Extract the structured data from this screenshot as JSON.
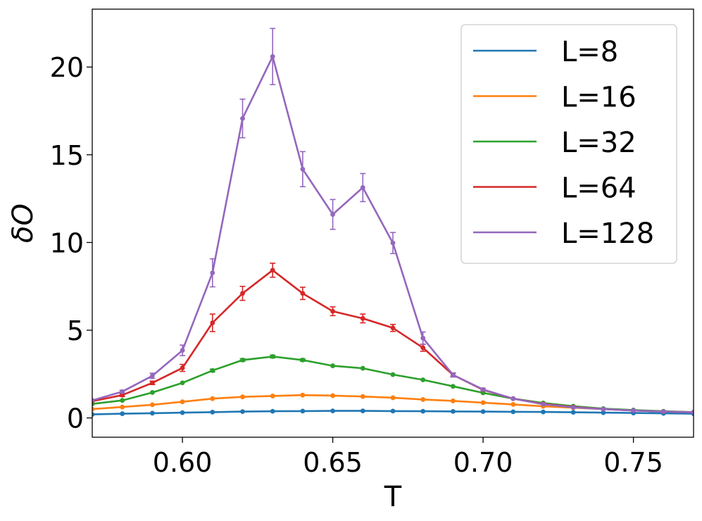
{
  "chart_data": {
    "type": "line",
    "xlabel": "T",
    "ylabel": "δO",
    "xlim": [
      0.57,
      0.77
    ],
    "ylim": [
      -1.1,
      23.3
    ],
    "x_ticks": [
      "0.60",
      "0.65",
      "0.70",
      "0.75"
    ],
    "y_ticks": [
      "0",
      "5",
      "10",
      "15",
      "20"
    ],
    "grid": false,
    "legend_position": "top-right",
    "x": [
      0.57,
      0.58,
      0.59,
      0.6,
      0.61,
      0.62,
      0.63,
      0.64,
      0.65,
      0.66,
      0.67,
      0.68,
      0.69,
      0.7,
      0.71,
      0.72,
      0.73,
      0.74,
      0.75,
      0.76,
      0.77
    ],
    "series": [
      {
        "name": "L=8",
        "color": "#1f77b4",
        "values": [
          0.2,
          0.24,
          0.27,
          0.3,
          0.33,
          0.36,
          0.38,
          0.39,
          0.4,
          0.4,
          0.39,
          0.38,
          0.37,
          0.36,
          0.35,
          0.34,
          0.32,
          0.3,
          0.28,
          0.26,
          0.24
        ],
        "errors": [
          0.01,
          0.01,
          0.01,
          0.01,
          0.01,
          0.01,
          0.01,
          0.01,
          0.01,
          0.01,
          0.01,
          0.01,
          0.01,
          0.01,
          0.01,
          0.01,
          0.01,
          0.01,
          0.01,
          0.01,
          0.01
        ]
      },
      {
        "name": "L=16",
        "color": "#ff7f0e",
        "values": [
          0.5,
          0.62,
          0.75,
          0.92,
          1.1,
          1.2,
          1.25,
          1.3,
          1.27,
          1.22,
          1.15,
          1.05,
          0.97,
          0.87,
          0.77,
          0.66,
          0.58,
          0.5,
          0.43,
          0.37,
          0.33
        ],
        "errors": [
          0.02,
          0.02,
          0.02,
          0.03,
          0.03,
          0.03,
          0.03,
          0.03,
          0.03,
          0.03,
          0.03,
          0.03,
          0.02,
          0.02,
          0.02,
          0.02,
          0.02,
          0.02,
          0.02,
          0.02,
          0.02
        ]
      },
      {
        "name": "L=32",
        "color": "#2ca02c",
        "values": [
          0.8,
          1.0,
          1.45,
          2.0,
          2.7,
          3.3,
          3.5,
          3.3,
          2.97,
          2.83,
          2.47,
          2.17,
          1.8,
          1.43,
          1.1,
          0.85,
          0.67,
          0.53,
          0.45,
          0.38,
          0.33
        ],
        "errors": [
          0.03,
          0.04,
          0.05,
          0.06,
          0.08,
          0.08,
          0.08,
          0.07,
          0.06,
          0.06,
          0.05,
          0.05,
          0.04,
          0.04,
          0.03,
          0.03,
          0.03,
          0.02,
          0.02,
          0.02,
          0.02
        ]
      },
      {
        "name": "L=64",
        "color": "#d62728",
        "values": [
          0.95,
          1.3,
          2.0,
          2.85,
          5.42,
          7.1,
          8.42,
          7.1,
          6.08,
          5.67,
          5.13,
          4.0,
          2.45,
          1.6,
          1.1,
          0.8,
          0.62,
          0.5,
          0.42,
          0.36,
          0.32
        ],
        "errors": [
          0.05,
          0.08,
          0.1,
          0.2,
          0.5,
          0.4,
          0.4,
          0.35,
          0.25,
          0.25,
          0.2,
          0.2,
          0.1,
          0.06,
          0.04,
          0.03,
          0.03,
          0.02,
          0.02,
          0.02,
          0.02
        ]
      },
      {
        "name": "L=128",
        "color": "#9467bd",
        "values": [
          1.0,
          1.5,
          2.4,
          3.85,
          8.27,
          17.07,
          20.6,
          14.18,
          11.6,
          13.13,
          9.97,
          4.55,
          2.45,
          1.62,
          1.1,
          0.78,
          0.6,
          0.5,
          0.42,
          0.36,
          0.32
        ],
        "errors": [
          0.05,
          0.08,
          0.15,
          0.3,
          0.8,
          1.1,
          1.6,
          1.0,
          0.85,
          0.8,
          0.6,
          0.35,
          0.12,
          0.07,
          0.05,
          0.04,
          0.03,
          0.03,
          0.02,
          0.02,
          0.02
        ]
      }
    ]
  }
}
